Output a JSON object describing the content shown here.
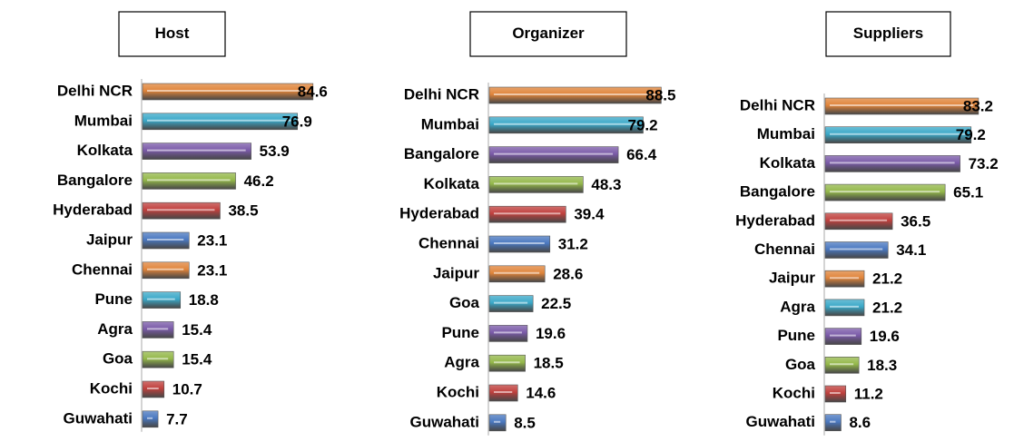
{
  "chart_data": [
    {
      "type": "bar",
      "title": "Host",
      "categories": [
        "Delhi NCR",
        "Mumbai",
        "Kolkata",
        "Bangalore",
        "Hyderabad",
        "Jaipur",
        "Chennai",
        "Pune",
        "Agra",
        "Goa",
        "Kochi",
        "Guwahati"
      ],
      "values": [
        84.6,
        76.9,
        53.9,
        46.2,
        38.5,
        23.1,
        23.1,
        18.8,
        15.4,
        15.4,
        10.7,
        7.7
      ],
      "colors": [
        "#e0843a",
        "#3aa8c8",
        "#7a5aa8",
        "#94b84a",
        "#c0403d",
        "#4a78c0",
        "#e0843a",
        "#3aa8c8",
        "#7a5aa8",
        "#94b84a",
        "#c0403d",
        "#4a78c0"
      ]
    },
    {
      "type": "bar",
      "title": "Organizer",
      "categories": [
        "Delhi NCR",
        "Mumbai",
        "Bangalore",
        "Kolkata",
        "Hyderabad",
        "Chennai",
        "Jaipur",
        "Goa",
        "Pune",
        "Agra",
        "Kochi",
        "Guwahati"
      ],
      "values": [
        88.5,
        79.2,
        66.4,
        48.3,
        39.4,
        31.2,
        28.6,
        22.5,
        19.6,
        18.5,
        14.6,
        8.5
      ],
      "colors": [
        "#e0843a",
        "#3aa8c8",
        "#7a5aa8",
        "#94b84a",
        "#c0403d",
        "#4a78c0",
        "#e0843a",
        "#3aa8c8",
        "#7a5aa8",
        "#94b84a",
        "#c0403d",
        "#4a78c0"
      ]
    },
    {
      "type": "bar",
      "title": "Suppliers",
      "categories": [
        "Delhi NCR",
        "Mumbai",
        "Kolkata",
        "Bangalore",
        "Hyderabad",
        "Chennai",
        "Jaipur",
        "Agra",
        "Pune",
        "Goa",
        "Kochi",
        "Guwahati"
      ],
      "values": [
        83.2,
        79.2,
        73.2,
        65.1,
        36.5,
        34.1,
        21.2,
        21.2,
        19.6,
        18.3,
        11.2,
        8.6
      ],
      "colors": [
        "#e0843a",
        "#3aa8c8",
        "#7a5aa8",
        "#94b84a",
        "#c0403d",
        "#4a78c0",
        "#e0843a",
        "#3aa8c8",
        "#7a5aa8",
        "#94b84a",
        "#c0403d",
        "#4a78c0"
      ]
    }
  ]
}
